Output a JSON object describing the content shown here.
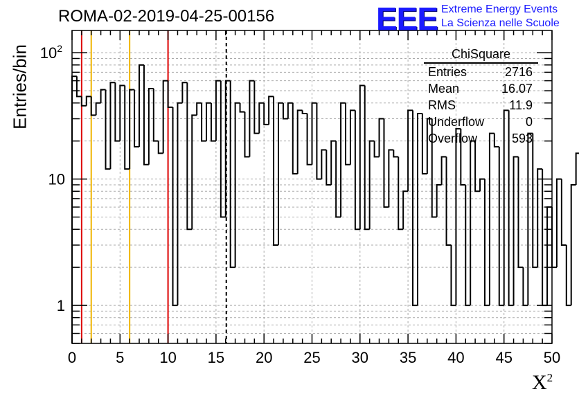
{
  "header": {
    "run_title": "ROMA-02-2019-04-25-00156",
    "logo_text": "EEE",
    "logo_line1": "Extreme Energy Events",
    "logo_line2": "La Scienza nelle Scuole"
  },
  "stats_box": {
    "title": "ChiSquare",
    "rows": [
      {
        "label": "Entries",
        "value": "2716"
      },
      {
        "label": "Mean",
        "value": "16.07"
      },
      {
        "label": "RMS",
        "value": "11.9"
      },
      {
        "label": "Underflow",
        "value": "0"
      },
      {
        "label": "Overflow",
        "value": "593"
      }
    ]
  },
  "colors": {
    "red_cut": "#dd0000",
    "yellow_cut": "#f0b400",
    "grid": "#aaaaaa",
    "histogram": "#000000"
  },
  "chart_data": {
    "type": "bar",
    "style": "step-histogram",
    "title": "",
    "xlabel": "X²",
    "ylabel": "Entries/bin",
    "xlim": [
      0,
      50
    ],
    "ylim": [
      0.5,
      150
    ],
    "yscale": "log",
    "bin_width": 0.5,
    "grid": true,
    "x_ticks": [
      "0",
      "5",
      "10",
      "15",
      "20",
      "25",
      "30",
      "35",
      "40",
      "45",
      "50"
    ],
    "y_ticks": [
      {
        "value": 1,
        "label": "1"
      },
      {
        "value": 10,
        "label": "10"
      },
      {
        "value": 100,
        "label": "10^2"
      }
    ],
    "values": [
      65,
      45,
      38,
      45,
      32,
      40,
      51,
      12,
      58,
      20,
      55,
      12,
      51,
      18,
      80,
      13,
      52,
      20,
      16,
      60,
      37,
      1,
      40,
      58,
      4,
      32,
      40,
      20,
      40,
      20,
      60,
      5,
      60,
      2,
      40,
      34,
      15,
      60,
      23,
      40,
      27,
      45,
      3,
      40,
      30,
      40,
      11,
      35,
      33,
      13,
      40,
      10,
      17,
      9,
      20,
      5,
      40,
      13,
      35,
      4,
      55,
      4,
      20,
      15,
      30,
      6,
      17,
      15,
      4,
      8,
      35,
      1,
      33,
      11,
      30,
      5,
      9,
      15,
      3,
      1,
      25,
      9,
      1,
      20,
      8,
      10,
      1,
      23,
      18,
      1,
      35,
      1,
      15,
      2,
      1,
      23,
      2,
      12,
      1,
      6,
      2,
      10,
      3,
      1,
      9,
      16,
      1,
      3,
      1,
      12,
      9,
      1,
      8,
      5,
      1,
      2,
      5,
      1,
      5,
      1,
      18,
      14,
      1,
      4,
      6,
      1,
      15,
      1,
      10,
      1,
      1,
      3,
      2,
      1,
      4,
      6,
      4,
      1,
      1,
      6,
      1,
      4,
      1,
      6,
      6,
      1,
      1,
      1,
      2,
      9,
      1,
      1,
      4,
      3,
      2,
      2,
      5,
      1,
      2,
      3,
      5,
      2,
      2,
      1,
      2,
      2,
      3,
      1,
      1,
      8
    ],
    "vlines": [
      {
        "x": 1,
        "color": "red",
        "style": "solid"
      },
      {
        "x": 2,
        "color": "yellow",
        "style": "solid"
      },
      {
        "x": 6,
        "color": "yellow",
        "style": "solid"
      },
      {
        "x": 10,
        "color": "red",
        "style": "solid"
      },
      {
        "x": 16.07,
        "color": "black",
        "style": "dashed"
      }
    ]
  }
}
